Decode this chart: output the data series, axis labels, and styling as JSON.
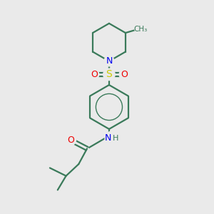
{
  "bg_color": "#eaeaea",
  "bond_color": "#3a7a5a",
  "atom_colors": {
    "N": "#0000ee",
    "O": "#ee0000",
    "S": "#cccc00",
    "C": "#3a7a5a"
  },
  "bond_width": 1.6,
  "font_size": 9
}
